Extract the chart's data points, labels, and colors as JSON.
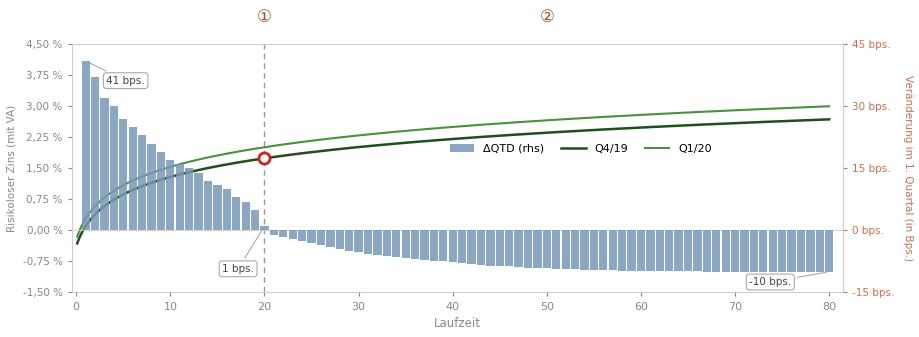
{
  "bar_positive_x": [
    1,
    2,
    3,
    4,
    5,
    6,
    7,
    8,
    9,
    10,
    11,
    12,
    13,
    14,
    15,
    16,
    17,
    18,
    19,
    20
  ],
  "bar_positive_values": [
    41,
    37,
    32,
    30,
    27,
    25,
    23,
    21,
    19,
    17,
    16,
    15,
    14,
    12,
    11,
    10,
    8,
    7,
    5,
    1
  ],
  "bar_negative_x": [
    21,
    22,
    23,
    24,
    25,
    26,
    27,
    28,
    29,
    30,
    31,
    32,
    33,
    34,
    35,
    36,
    37,
    38,
    39,
    40,
    41,
    42,
    43,
    44,
    45,
    46,
    47,
    48,
    49,
    50,
    51,
    52,
    53,
    54,
    55,
    56,
    57,
    58,
    59,
    60,
    61,
    62,
    63,
    64,
    65,
    66,
    67,
    68,
    69,
    70,
    71,
    72,
    73,
    74,
    75,
    76,
    77,
    78,
    79,
    80
  ],
  "bar_negative_values": [
    -1,
    -1.5,
    -2,
    -2.5,
    -3,
    -3.5,
    -4,
    -4.5,
    -5,
    -5.3,
    -5.6,
    -5.9,
    -6.2,
    -6.4,
    -6.7,
    -6.9,
    -7.1,
    -7.3,
    -7.5,
    -7.7,
    -7.9,
    -8.1,
    -8.3,
    -8.5,
    -8.6,
    -8.7,
    -8.85,
    -9.0,
    -9.1,
    -9.2,
    -9.3,
    -9.35,
    -9.4,
    -9.5,
    -9.55,
    -9.6,
    -9.65,
    -9.7,
    -9.75,
    -9.8,
    -9.82,
    -9.84,
    -9.86,
    -9.88,
    -9.9,
    -9.92,
    -9.94,
    -9.96,
    -9.97,
    -9.98,
    -9.99,
    -9.995,
    -10.0,
    -10.0,
    -10.0,
    -10.0,
    -10.0,
    -10.0,
    -10.0,
    -10.0
  ],
  "bar_color": "#7898b8",
  "left_ylim": [
    -1.5,
    4.5
  ],
  "right_ylim": [
    -15,
    45
  ],
  "left_yticks": [
    -1.5,
    -0.75,
    0.0,
    0.75,
    1.5,
    2.25,
    3.0,
    3.75,
    4.5
  ],
  "left_yticklabels": [
    "-1,50 %",
    "-0,75 %",
    "0,00 %",
    "0,75 %",
    "1,50 %",
    "2,25 %",
    "3,00 %",
    "3,75 %",
    "4,50 %"
  ],
  "right_yticks": [
    -15,
    0,
    15,
    30,
    45
  ],
  "right_yticklabels": [
    "-15 bps.",
    "0 bps.",
    "15 bps.",
    "30 bps.",
    "45 bps."
  ],
  "xlabel": "Laufzeit",
  "ylabel_left": "Risikoloser Zins (mit VA)",
  "ylabel_right": "Veränderung im 1. Quartal (in Bps.)",
  "xticks": [
    0,
    10,
    20,
    30,
    40,
    50,
    60,
    70,
    80
  ],
  "vline_x": 20,
  "dark_green": "#1f4e1f",
  "light_green": "#4a9040",
  "salmon_line_color": "#e8a898",
  "circle_marker_color": "#cc2222",
  "tick_color": "#888888",
  "right_tick_color": "#c87050",
  "bg_color": "#ffffff",
  "legend_bar_label": "ΔQTD (rhs)",
  "legend_q419_label": "Q4/19",
  "legend_q120_label": "Q1/20",
  "number_circle_color": "#a05020",
  "annotation_color": "#444444",
  "box_edge_color": "#aaaaaa"
}
